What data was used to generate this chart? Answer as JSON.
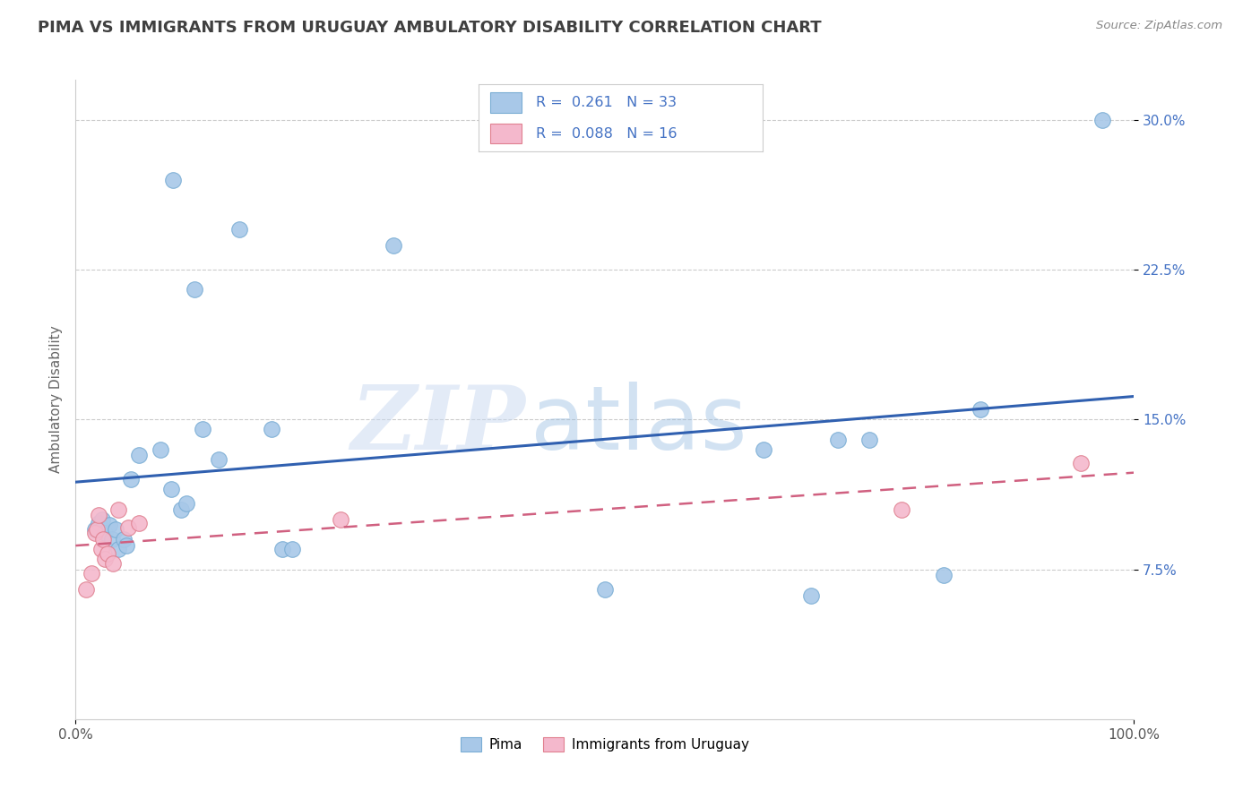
{
  "title": "PIMA VS IMMIGRANTS FROM URUGUAY AMBULATORY DISABILITY CORRELATION CHART",
  "source": "Source: ZipAtlas.com",
  "ylabel": "Ambulatory Disability",
  "xlim": [
    0.0,
    1.0
  ],
  "ylim": [
    0.0,
    0.32
  ],
  "yticks": [
    0.075,
    0.15,
    0.225,
    0.3
  ],
  "ytick_labels": [
    "7.5%",
    "15.0%",
    "22.5%",
    "30.0%"
  ],
  "xticks": [
    0.0,
    1.0
  ],
  "xtick_labels": [
    "0.0%",
    "100.0%"
  ],
  "pima_color": "#a8c8e8",
  "pima_edge_color": "#7aadd4",
  "pima_line_color": "#3060b0",
  "uruguay_color": "#f4b8cc",
  "uruguay_edge_color": "#e08090",
  "uruguay_line_color": "#d06080",
  "pima_R": 0.261,
  "pima_N": 33,
  "uruguay_R": 0.088,
  "uruguay_N": 16,
  "pima_x": [
    0.018,
    0.022,
    0.025,
    0.028,
    0.032,
    0.034,
    0.038,
    0.04,
    0.045,
    0.048,
    0.052,
    0.06,
    0.08,
    0.09,
    0.092,
    0.1,
    0.105,
    0.112,
    0.12,
    0.135,
    0.155,
    0.185,
    0.195,
    0.205,
    0.3,
    0.5,
    0.65,
    0.695,
    0.72,
    0.75,
    0.82,
    0.855,
    0.97
  ],
  "pima_y": [
    0.095,
    0.098,
    0.1,
    0.093,
    0.097,
    0.09,
    0.095,
    0.085,
    0.09,
    0.087,
    0.12,
    0.132,
    0.135,
    0.115,
    0.27,
    0.105,
    0.108,
    0.215,
    0.145,
    0.13,
    0.245,
    0.145,
    0.085,
    0.085,
    0.237,
    0.065,
    0.135,
    0.062,
    0.14,
    0.14,
    0.072,
    0.155,
    0.3
  ],
  "uruguay_x": [
    0.01,
    0.015,
    0.018,
    0.02,
    0.022,
    0.024,
    0.026,
    0.028,
    0.03,
    0.035,
    0.04,
    0.05,
    0.06,
    0.25,
    0.78,
    0.95
  ],
  "uruguay_y": [
    0.065,
    0.073,
    0.093,
    0.095,
    0.102,
    0.085,
    0.09,
    0.08,
    0.083,
    0.078,
    0.105,
    0.096,
    0.098,
    0.1,
    0.105,
    0.128
  ],
  "watermark_zip": "ZIP",
  "watermark_atlas": "atlas",
  "background_color": "#ffffff",
  "grid_color": "#cccccc",
  "legend_label_color": "#4472c4",
  "ytick_color": "#4472c4",
  "title_color": "#404040",
  "source_color": "#888888"
}
